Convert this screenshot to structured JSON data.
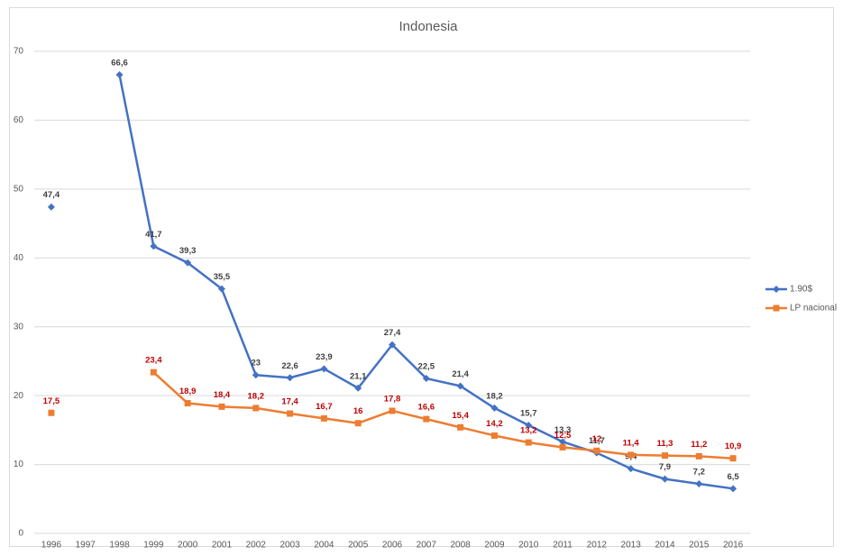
{
  "chart_data": {
    "type": "line",
    "title": "Indonesia",
    "categories": [
      "1996",
      "1997",
      "1998",
      "1999",
      "2000",
      "2001",
      "2002",
      "2003",
      "2004",
      "2005",
      "2006",
      "2007",
      "2008",
      "2009",
      "2010",
      "2011",
      "2012",
      "2013",
      "2014",
      "2015",
      "2016"
    ],
    "series": [
      {
        "name": "1.90$",
        "color": "#4472c4",
        "label_color": "#404040",
        "marker": "diamond",
        "values": [
          47.4,
          null,
          66.6,
          41.7,
          39.3,
          35.5,
          23,
          22.6,
          23.9,
          21.1,
          27.4,
          22.5,
          21.4,
          18.2,
          15.7,
          13.3,
          11.7,
          9.4,
          7.9,
          7.2,
          6.5
        ],
        "value_labels": [
          "47,4",
          null,
          "66,6",
          "41,7",
          "39,3",
          "35,5",
          "23",
          "22,6",
          "23,9",
          "21,1",
          "27,4",
          "22,5",
          "21,4",
          "18,2",
          "15,7",
          "13,3",
          "11,7",
          "9,4",
          "7,9",
          "7,2",
          "6,5"
        ]
      },
      {
        "name": "LP nacional",
        "color": "#ed7d31",
        "label_color": "#c00000",
        "marker": "square",
        "values": [
          17.5,
          null,
          null,
          23.4,
          18.9,
          18.4,
          18.2,
          17.4,
          16.7,
          16,
          17.8,
          16.6,
          15.4,
          14.2,
          13.2,
          12.5,
          12,
          11.4,
          11.3,
          11.2,
          10.9
        ],
        "value_labels": [
          "17,5",
          null,
          null,
          "23,4",
          "18,9",
          "18,4",
          "18,2",
          "17,4",
          "16,7",
          "16",
          "17,8",
          "16,6",
          "15,4",
          "14,2",
          "13,2",
          "12,5",
          "12",
          "11,4",
          "11,3",
          "11,2",
          "10,9"
        ]
      }
    ],
    "ylim": [
      0,
      70
    ],
    "yticks": [
      0,
      10,
      20,
      30,
      40,
      50,
      60,
      70
    ],
    "grid": true,
    "legend": "right"
  }
}
